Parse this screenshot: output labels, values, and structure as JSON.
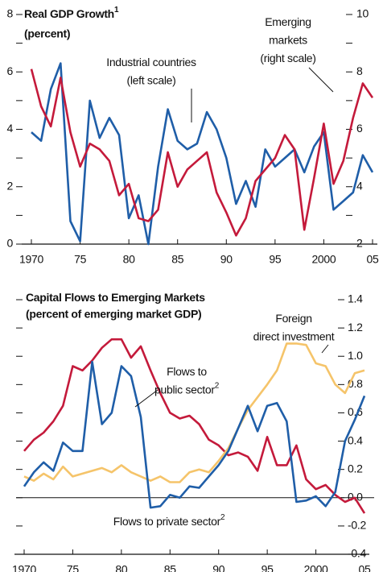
{
  "chart_data": [
    {
      "type": "line",
      "title": "Real GDP Growth",
      "title_footnote": "1",
      "subtitle": "(percent)",
      "x": [
        1970,
        1971,
        1972,
        1973,
        1974,
        1975,
        1976,
        1977,
        1978,
        1979,
        1980,
        1981,
        1982,
        1983,
        1984,
        1985,
        1986,
        1987,
        1988,
        1989,
        1990,
        1991,
        1992,
        1993,
        1994,
        1995,
        1996,
        1997,
        1998,
        1999,
        2000,
        2001,
        2002,
        2003,
        2004,
        2005
      ],
      "xlim": [
        1970,
        2005
      ],
      "xticks": [
        1970,
        {
          "value": 1975,
          "label": "75"
        },
        {
          "value": 1980,
          "label": "80"
        },
        {
          "value": 1985,
          "label": "85"
        },
        {
          "value": 1990,
          "label": "90"
        },
        {
          "value": 1995,
          "label": "95"
        },
        2000,
        {
          "value": 2005,
          "label": "05"
        }
      ],
      "ylim": [
        0,
        8
      ],
      "yticks": [
        0,
        2,
        4,
        6,
        8
      ],
      "y2lim": [
        2,
        10
      ],
      "y2ticks": [
        2,
        4,
        6,
        8,
        10
      ],
      "series": [
        {
          "color": "#1f5ea8",
          "values": [
            3.9,
            3.6,
            5.4,
            6.3,
            0.8,
            0.1,
            5.0,
            3.7,
            4.4,
            3.8,
            0.9,
            1.7,
            0.0,
            2.7,
            4.7,
            3.6,
            3.3,
            3.5,
            4.6,
            4.0,
            3.0,
            1.4,
            2.2,
            1.3,
            3.3,
            2.7,
            3.0,
            3.3,
            2.5,
            3.4,
            3.9,
            1.2,
            1.5,
            1.8,
            3.1,
            2.5
          ]
        },
        {
          "color": "#c41a3b",
          "axis": "y2",
          "values": [
            8.1,
            6.8,
            6.1,
            7.8,
            5.9,
            4.7,
            5.5,
            5.3,
            4.9,
            3.7,
            4.1,
            2.9,
            2.8,
            3.2,
            5.2,
            4.0,
            4.6,
            4.9,
            5.2,
            3.8,
            3.1,
            2.3,
            2.9,
            4.2,
            4.6,
            5.0,
            5.8,
            5.3,
            2.5,
            4.3,
            6.2,
            4.1,
            4.9,
            6.4,
            7.6,
            7.1
          ]
        }
      ],
      "annotations": [
        {
          "lines": [
            "Industrial countries",
            "(left scale)"
          ]
        },
        {
          "lines": [
            "Emerging",
            "markets",
            "(right scale)"
          ]
        }
      ]
    },
    {
      "type": "line",
      "title": "Capital Flows to Emerging Markets",
      "subtitle": "(percent of emerging market GDP)",
      "x": [
        1970,
        1971,
        1972,
        1973,
        1974,
        1975,
        1976,
        1977,
        1978,
        1979,
        1980,
        1981,
        1982,
        1983,
        1984,
        1985,
        1986,
        1987,
        1988,
        1989,
        1990,
        1991,
        1992,
        1993,
        1994,
        1995,
        1996,
        1997,
        1998,
        1999,
        2000,
        2001,
        2002,
        2003,
        2004,
        2005
      ],
      "xlim": [
        1970,
        2005
      ],
      "xticks": [
        1970,
        {
          "value": 1975,
          "label": "75"
        },
        {
          "value": 1980,
          "label": "80"
        },
        {
          "value": 1985,
          "label": "85"
        },
        {
          "value": 1990,
          "label": "90"
        },
        {
          "value": 1995,
          "label": "95"
        },
        2000,
        {
          "value": 2005,
          "label": "05"
        }
      ],
      "ylim": [
        -0.4,
        1.4
      ],
      "yticks": [
        -0.4,
        -0.2,
        {
          "value": 0,
          "label": "0.0"
        },
        0.2,
        0.4,
        0.6,
        0.8,
        {
          "value": 1,
          "label": "1.0"
        },
        1.2,
        1.4
      ],
      "y_axis_side": "right",
      "zero_line": true,
      "series": [
        {
          "color": "#c41a3b",
          "values": [
            0.33,
            0.41,
            0.46,
            0.54,
            0.65,
            0.93,
            0.9,
            0.97,
            1.06,
            1.12,
            1.12,
            0.99,
            1.07,
            0.9,
            0.74,
            0.6,
            0.56,
            0.58,
            0.52,
            0.41,
            0.37,
            0.3,
            0.32,
            0.29,
            0.19,
            0.43,
            0.23,
            0.23,
            0.37,
            0.13,
            0.06,
            0.09,
            0.02,
            -0.03,
            0.0,
            -0.11
          ]
        },
        {
          "color": "#f5c46a",
          "values": [
            0.15,
            0.12,
            0.17,
            0.13,
            0.22,
            0.15,
            0.17,
            0.19,
            0.21,
            0.18,
            0.23,
            0.18,
            0.15,
            0.12,
            0.15,
            0.11,
            0.11,
            0.18,
            0.2,
            0.18,
            0.26,
            0.35,
            0.49,
            0.62,
            0.71,
            0.8,
            0.9,
            1.09,
            1.09,
            1.08,
            0.95,
            0.93,
            0.8,
            0.74,
            0.88,
            0.9
          ]
        },
        {
          "color": "#1f5ea8",
          "values": [
            0.08,
            0.18,
            0.25,
            0.19,
            0.39,
            0.33,
            0.33,
            0.96,
            0.52,
            0.6,
            0.93,
            0.86,
            0.57,
            -0.07,
            -0.06,
            0.02,
            0.0,
            0.08,
            0.07,
            0.15,
            0.23,
            0.33,
            0.49,
            0.65,
            0.47,
            0.65,
            0.67,
            0.54,
            -0.03,
            -0.02,
            0.01,
            -0.06,
            0.04,
            0.4,
            0.55,
            0.72
          ]
        }
      ],
      "annotations": [
        {
          "lines": [
            "Foreign",
            "direct investment"
          ]
        },
        {
          "lines": [
            "Flows to",
            "public sector"
          ],
          "footnote": "2"
        },
        {
          "lines": [
            "Flows to private sector"
          ],
          "footnote": "2"
        }
      ]
    }
  ]
}
